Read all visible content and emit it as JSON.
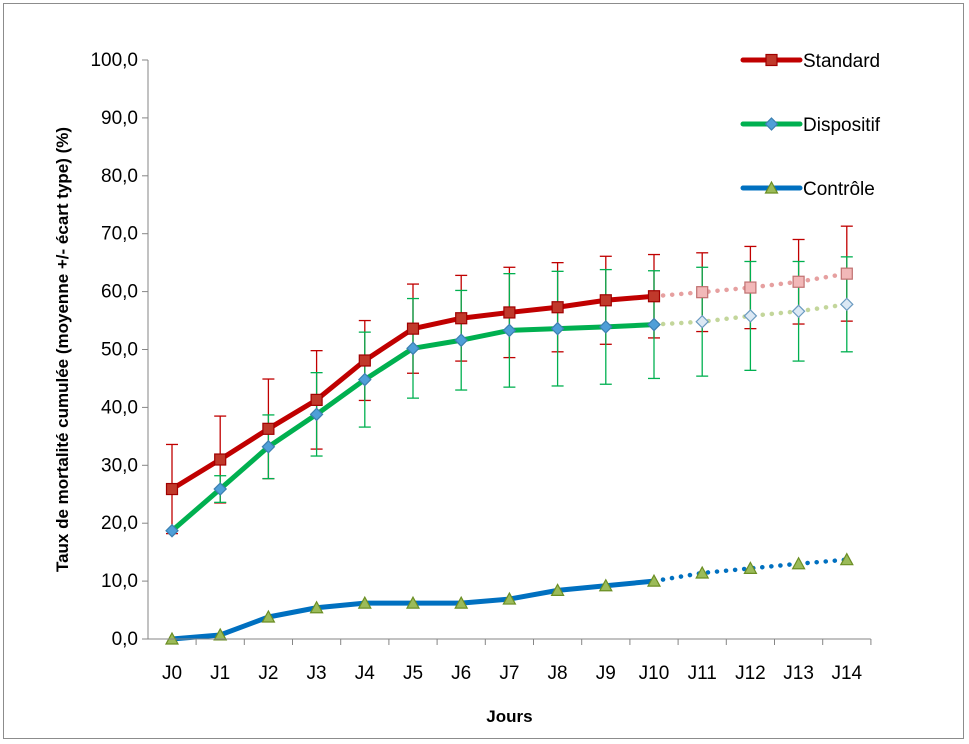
{
  "chart_data": {
    "type": "line",
    "title": "",
    "xlabel": "Jours",
    "ylabel": "Taux de mortalité cumulée (moyenne +/- écart type) (%)",
    "categories": [
      "J0",
      "J1",
      "J2",
      "J3",
      "J4",
      "J5",
      "J6",
      "J7",
      "J8",
      "J9",
      "J10",
      "J11",
      "J12",
      "J13",
      "J14"
    ],
    "ylim": [
      0,
      100
    ],
    "yticks": [
      "0,0",
      "10,0",
      "20,0",
      "30,0",
      "40,0",
      "50,0",
      "60,0",
      "70,0",
      "80,0",
      "90,0",
      "100,0"
    ],
    "grid": false,
    "legend_position": "top-right",
    "solid_until_index": 10,
    "series": [
      {
        "name": "Standard",
        "color": "#c00000",
        "projection_color": "#e6a0a0",
        "marker": "square",
        "values": [
          25.9,
          31.0,
          36.3,
          41.3,
          48.1,
          53.6,
          55.4,
          56.4,
          57.3,
          58.5,
          59.2,
          59.9,
          60.7,
          61.7,
          63.1
        ],
        "errors": [
          7.7,
          7.5,
          8.6,
          8.5,
          6.9,
          7.7,
          7.4,
          7.8,
          7.7,
          7.6,
          7.2,
          6.8,
          7.1,
          7.3,
          8.2
        ]
      },
      {
        "name": "Dispositif",
        "color": "#00b050",
        "projection_color": "#c3d69b",
        "marker": "diamond",
        "values": [
          18.7,
          25.9,
          33.2,
          38.8,
          44.8,
          50.2,
          51.6,
          53.3,
          53.6,
          53.9,
          54.3,
          54.8,
          55.8,
          56.6,
          57.8
        ],
        "errors": [
          0,
          2.3,
          5.5,
          7.2,
          8.2,
          8.6,
          8.6,
          9.8,
          9.9,
          9.9,
          9.3,
          9.4,
          9.4,
          8.6,
          8.2
        ]
      },
      {
        "name": "Contrôle",
        "color": "#0070c0",
        "projection_color": "#0070c0",
        "marker": "triangle",
        "values": [
          0.0,
          0.7,
          3.8,
          5.4,
          6.2,
          6.2,
          6.2,
          6.9,
          8.4,
          9.2,
          10.0,
          11.4,
          12.2,
          13.0,
          13.7
        ],
        "errors": []
      }
    ]
  }
}
